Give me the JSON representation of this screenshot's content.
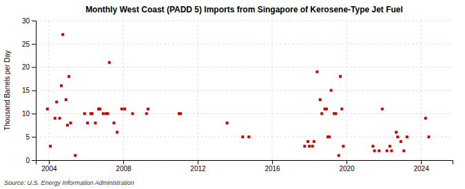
{
  "chart_data": {
    "type": "scatter",
    "title": "Monthly West Coast (PADD 5) Imports from Singapore of Kerosene-Type Jet Fuel",
    "ylabel": "Thousand Barrels per Day",
    "source": "Source: U.S. Energy Information Administration",
    "color": "#cc0000",
    "marker": "square",
    "grid": true,
    "xlim": [
      2003.3,
      2025.7
    ],
    "ylim": [
      0,
      30
    ],
    "xticks": [
      2004,
      2008,
      2012,
      2016,
      2020,
      2024
    ],
    "yticks": [
      0,
      5,
      10,
      15,
      20,
      25,
      30
    ],
    "x": [
      2003.92,
      2004.08,
      2004.33,
      2004.42,
      2004.58,
      2004.67,
      2004.75,
      2004.92,
      2005.0,
      2005.08,
      2005.17,
      2005.42,
      2005.92,
      2006.08,
      2006.25,
      2006.33,
      2006.5,
      2006.67,
      2006.75,
      2006.92,
      2007.08,
      2007.17,
      2007.25,
      2007.5,
      2007.67,
      2007.92,
      2008.08,
      2008.5,
      2009.25,
      2009.33,
      2011.0,
      2011.08,
      2013.58,
      2014.42,
      2014.75,
      2017.75,
      2017.92,
      2018.0,
      2018.17,
      2018.25,
      2018.42,
      2018.58,
      2018.67,
      2018.83,
      2018.92,
      2019.0,
      2019.08,
      2019.17,
      2019.33,
      2019.42,
      2019.58,
      2019.67,
      2019.75,
      2019.83,
      2021.42,
      2021.5,
      2021.75,
      2021.92,
      2022.17,
      2022.33,
      2022.42,
      2022.67,
      2022.75,
      2022.92,
      2023.08,
      2023.25,
      2024.25,
      2024.42
    ],
    "values": [
      11.0,
      3.0,
      9.0,
      12.5,
      9.0,
      16.0,
      27.0,
      13.0,
      7.5,
      18.0,
      8.0,
      1.0,
      10.0,
      8.0,
      10.0,
      10.0,
      8.0,
      11.0,
      11.0,
      10.0,
      10.0,
      10.0,
      21.0,
      8.0,
      6.0,
      11.0,
      11.0,
      10.0,
      10.0,
      11.0,
      10.0,
      10.0,
      8.0,
      5.0,
      5.0,
      3.0,
      4.0,
      3.0,
      3.0,
      4.0,
      19.0,
      13.0,
      10.0,
      11.0,
      11.0,
      5.0,
      5.0,
      15.0,
      10.0,
      10.0,
      1.0,
      18.0,
      11.0,
      3.0,
      3.0,
      2.0,
      2.0,
      11.0,
      2.0,
      3.0,
      2.0,
      6.0,
      5.0,
      4.0,
      2.0,
      5.0,
      9.0,
      5.0
    ]
  }
}
